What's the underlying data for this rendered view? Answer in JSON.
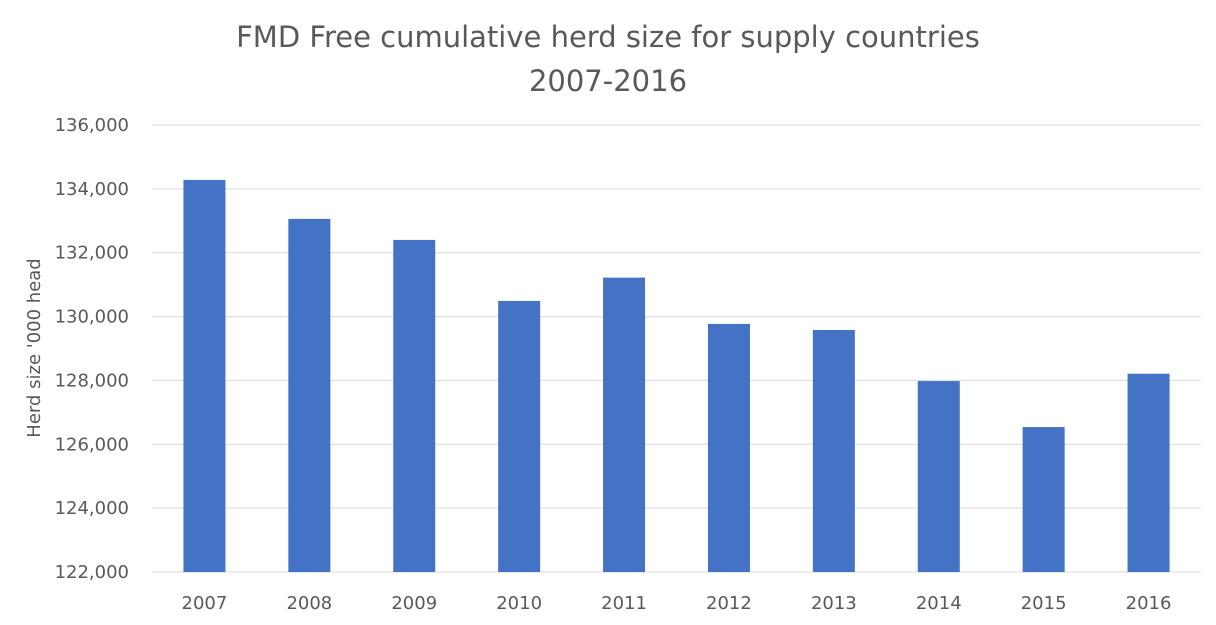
{
  "chart_data": {
    "type": "bar",
    "title": "FMD Free cumulative herd size for supply countries 2007-2016",
    "title_lines": [
      "FMD Free cumulative herd size for supply countries",
      "2007-2016"
    ],
    "xlabel": "",
    "ylabel": "Herd size '000 head",
    "categories": [
      "2007",
      "2008",
      "2009",
      "2010",
      "2011",
      "2012",
      "2013",
      "2014",
      "2015",
      "2016"
    ],
    "series": [
      {
        "values": [
          134280,
          133060,
          132400,
          130490,
          131220,
          129770,
          129580,
          127980,
          126540,
          128210
        ]
      }
    ],
    "ylim": [
      122000,
      136000
    ],
    "yticks": [
      122000,
      124000,
      126000,
      128000,
      130000,
      132000,
      134000,
      136000
    ],
    "ytick_labels": [
      "122,000",
      "124,000",
      "126,000",
      "128,000",
      "130,000",
      "132,000",
      "134,000",
      "136,000"
    ],
    "grid": true,
    "legend": "none",
    "bar_color": "#4472c4",
    "grid_color": "#d9d9d9",
    "text_color": "#595959"
  }
}
